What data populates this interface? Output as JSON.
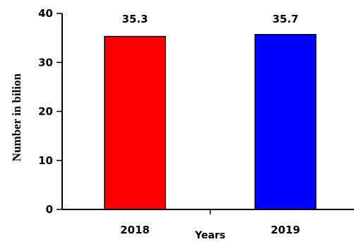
{
  "chart_data": {
    "type": "bar",
    "categories": [
      "2018",
      "2019"
    ],
    "values": [
      35.3,
      35.7
    ],
    "data_labels": [
      "35.3",
      "35.7"
    ],
    "bar_colors": [
      "#ff0000",
      "#0000ff"
    ],
    "xlabel": "Years",
    "ylabel": "Number in bilion",
    "ylim": [
      0,
      40
    ],
    "yticks": [
      0,
      10,
      20,
      30,
      40
    ],
    "ytick_labels": [
      "0",
      "10",
      "20",
      "30",
      "40"
    ],
    "grid": false,
    "legend": "none"
  }
}
